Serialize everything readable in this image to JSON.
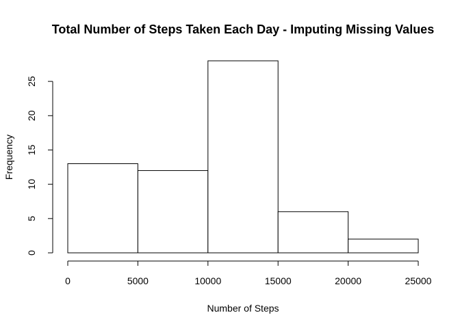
{
  "chart_data": {
    "type": "bar",
    "title": "Total Number of Steps Taken Each Day - Imputing Missing Values",
    "xlabel": "Number of Steps",
    "ylabel": "Frequency",
    "bins": [
      {
        "from": 0,
        "to": 5000,
        "count": 13
      },
      {
        "from": 5000,
        "to": 10000,
        "count": 12
      },
      {
        "from": 10000,
        "to": 15000,
        "count": 28
      },
      {
        "from": 15000,
        "to": 20000,
        "count": 6
      },
      {
        "from": 20000,
        "to": 25000,
        "count": 2
      }
    ],
    "xlim": [
      0,
      25000
    ],
    "ylim": [
      0,
      28
    ],
    "x_ticks": [
      0,
      5000,
      10000,
      15000,
      20000,
      25000
    ],
    "y_ticks": [
      0,
      5,
      10,
      15,
      20,
      25
    ],
    "grid": false,
    "bar_fill": "#ffffff",
    "bar_stroke": "#000000"
  }
}
